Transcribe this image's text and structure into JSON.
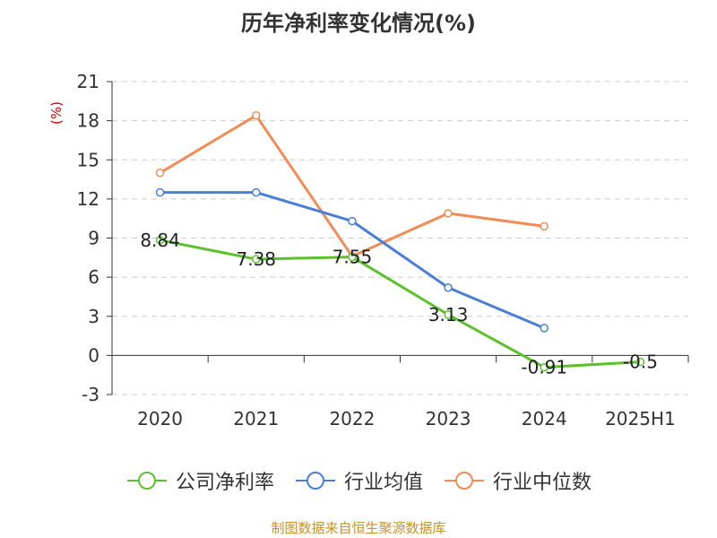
{
  "chart_data": {
    "type": "line",
    "title": "历年净利率变化情况(%)",
    "ylabel": "(%)",
    "xlabel": "",
    "categories": [
      "2020",
      "2021",
      "2022",
      "2023",
      "2024",
      "2025H1"
    ],
    "y_ticks": [
      "21",
      "18",
      "15",
      "12",
      "9",
      "6",
      "3",
      "0",
      "-3"
    ],
    "ylim": [
      -3,
      21
    ],
    "grid": true,
    "legend_position": "bottom",
    "series": [
      {
        "name": "公司净利率",
        "color": "#5dc12d",
        "values": [
          8.84,
          7.38,
          7.55,
          3.13,
          -0.91,
          -0.5
        ],
        "labels": [
          "8.84",
          "7.38",
          "7.55",
          "3.13",
          "-0.91",
          "-0.5"
        ]
      },
      {
        "name": "行业均值",
        "color": "#4a7fd8",
        "values": [
          12.5,
          12.5,
          10.3,
          5.2,
          2.1,
          null
        ]
      },
      {
        "name": "行业中位数",
        "color": "#f28c55",
        "values": [
          14.0,
          18.4,
          7.6,
          10.9,
          9.9,
          null
        ]
      }
    ]
  },
  "source_text": "制图数据来自恒生聚源数据库",
  "colors": {
    "title": "#333333",
    "ylabel": "#cc0000",
    "source": "#c8912a",
    "grid": "#cccccc"
  }
}
